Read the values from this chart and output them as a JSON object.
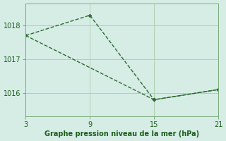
{
  "line1_x": [
    3,
    9,
    15,
    21
  ],
  "line1_y": [
    1017.7,
    1018.3,
    1015.8,
    1016.1
  ],
  "line2_x": [
    3,
    15,
    21
  ],
  "line2_y": [
    1017.7,
    1015.8,
    1016.1
  ],
  "x_ticks": [
    3,
    9,
    15,
    21
  ],
  "y_ticks": [
    1016,
    1017,
    1018
  ],
  "xlim": [
    3,
    21
  ],
  "ylim": [
    1015.3,
    1018.65
  ],
  "line_color": "#2d6a2d",
  "bg_color": "#d6ede6",
  "grid_color": "#aacaaa",
  "spine_color": "#7aaa7a",
  "xlabel": "Graphe pression niveau de la mer (hPa)",
  "xlabel_color": "#1a5c1a",
  "tick_label_color": "#1a5c1a",
  "marker": "D",
  "marker_size": 2.5,
  "linewidth": 1.0,
  "linestyle": "--",
  "xlabel_fontsize": 7,
  "tick_fontsize": 7
}
